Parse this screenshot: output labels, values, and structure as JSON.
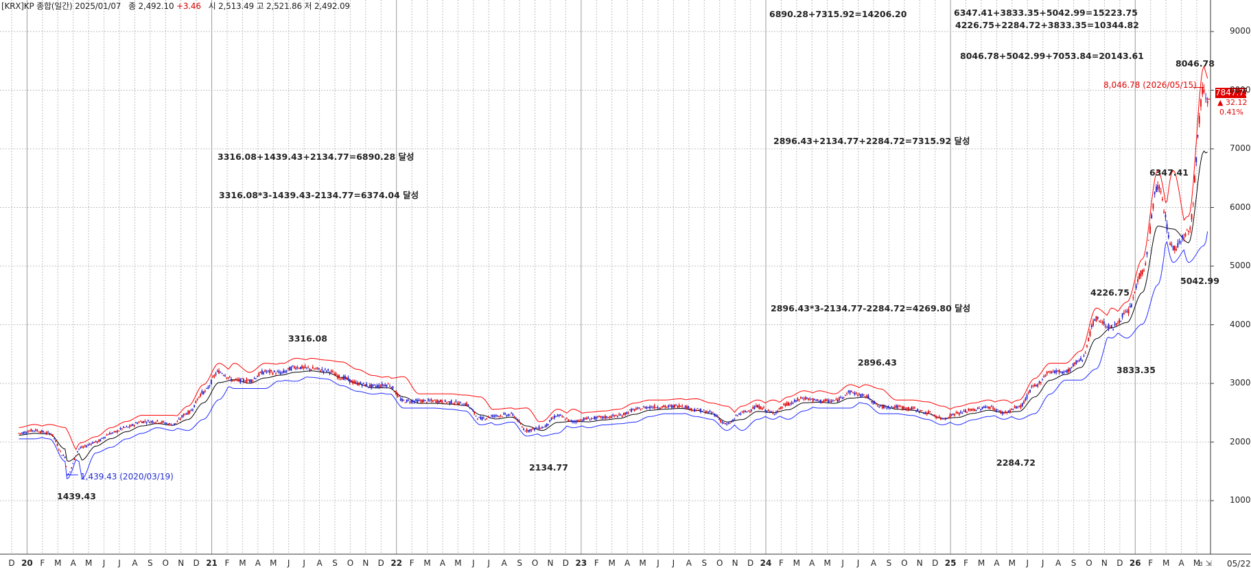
{
  "header": {
    "symbol": "[KRX]KP 종합(일간)",
    "date": "2025/01/07",
    "close_label": "종",
    "close": "2,492.10",
    "change": "+3.46",
    "open_label": "시",
    "open": "2,513.49",
    "high_label": "고",
    "high": "2,521.86",
    "low_label": "저",
    "low": "2,492.09"
  },
  "annotations": {
    "sum1": "6890.28+7315.92=14206.20",
    "sum2": "6347.41+3833.35+5042.99=15223.75",
    "sum3": "4226.75+2284.72+3833.35=10344.82",
    "sum4": "8046.78+5042.99+7053.84=20143.61",
    "peak_2026": "8046.78",
    "calc_a": "3316.08+1439.43+2134.77=6890.28 달성",
    "calc_b": "3316.08*3-1439.43-2134.77=6374.04 달성",
    "calc_c": "2896.43+2134.77+2284.72=7315.92 달성",
    "calc_d": "2896.43*3-2134.77-2284.72=4269.80 달성",
    "lvl_6347": "6347.41",
    "lvl_4226": "4226.75",
    "lvl_5042": "5042.99",
    "lvl_3316": "3316.08",
    "lvl_2896": "2896.43",
    "lvl_3833": "3833.35",
    "lvl_2134": "2134.77",
    "lvl_2284": "2284.72",
    "lvl_1439": "1439.43",
    "low_marker": "1,439.43 (2020/03/19)",
    "high_marker": "8,046.78 (2026/05/15)"
  },
  "last_price": {
    "value": "7847.71",
    "change": "▲ 32.12",
    "change_pct": "0.41%"
  },
  "x_axis_end": "05/22",
  "colors": {
    "up": "#e00000",
    "down": "#1a1ad0",
    "upper_band": "#ff0000",
    "lower_band": "#1f2bff",
    "middle": "#000000",
    "grid": "#bfbfbf"
  },
  "chart_data": {
    "type": "line",
    "title": "[KRX]KP 종합(일간)",
    "y_ticks": [
      "1000.00",
      "2000.00",
      "3000.00",
      "4000.00",
      "5000.00",
      "6000.00",
      "7000.00",
      "8000.00",
      "9000.00"
    ],
    "ylim": [
      0,
      9500
    ],
    "x_ticks": [
      {
        "label": "D",
        "year": false
      },
      {
        "label": "20",
        "year": true
      },
      {
        "label": "F",
        "year": false
      },
      {
        "label": "M",
        "year": false
      },
      {
        "label": "A",
        "year": false
      },
      {
        "label": "M",
        "year": false
      },
      {
        "label": "J",
        "year": false
      },
      {
        "label": "J",
        "year": false
      },
      {
        "label": "A",
        "year": false
      },
      {
        "label": "S",
        "year": false
      },
      {
        "label": "O",
        "year": false
      },
      {
        "label": "N",
        "year": false
      },
      {
        "label": "D",
        "year": false
      },
      {
        "label": "21",
        "year": true
      },
      {
        "label": "F",
        "year": false
      },
      {
        "label": "M",
        "year": false
      },
      {
        "label": "A",
        "year": false
      },
      {
        "label": "M",
        "year": false
      },
      {
        "label": "J",
        "year": false
      },
      {
        "label": "J",
        "year": false
      },
      {
        "label": "A",
        "year": false
      },
      {
        "label": "S",
        "year": false
      },
      {
        "label": "O",
        "year": false
      },
      {
        "label": "N",
        "year": false
      },
      {
        "label": "D",
        "year": false
      },
      {
        "label": "22",
        "year": true
      },
      {
        "label": "F",
        "year": false
      },
      {
        "label": "M",
        "year": false
      },
      {
        "label": "A",
        "year": false
      },
      {
        "label": "M",
        "year": false
      },
      {
        "label": "J",
        "year": false
      },
      {
        "label": "J",
        "year": false
      },
      {
        "label": "A",
        "year": false
      },
      {
        "label": "S",
        "year": false
      },
      {
        "label": "O",
        "year": false
      },
      {
        "label": "N",
        "year": false
      },
      {
        "label": "D",
        "year": false
      },
      {
        "label": "23",
        "year": true
      },
      {
        "label": "F",
        "year": false
      },
      {
        "label": "M",
        "year": false
      },
      {
        "label": "A",
        "year": false
      },
      {
        "label": "M",
        "year": false
      },
      {
        "label": "J",
        "year": false
      },
      {
        "label": "J",
        "year": false
      },
      {
        "label": "A",
        "year": false
      },
      {
        "label": "S",
        "year": false
      },
      {
        "label": "O",
        "year": false
      },
      {
        "label": "N",
        "year": false
      },
      {
        "label": "D",
        "year": false
      },
      {
        "label": "24",
        "year": true
      },
      {
        "label": "F",
        "year": false
      },
      {
        "label": "M",
        "year": false
      },
      {
        "label": "A",
        "year": false
      },
      {
        "label": "M",
        "year": false
      },
      {
        "label": "J",
        "year": false
      },
      {
        "label": "J",
        "year": false
      },
      {
        "label": "A",
        "year": false
      },
      {
        "label": "S",
        "year": false
      },
      {
        "label": "O",
        "year": false
      },
      {
        "label": "N",
        "year": false
      },
      {
        "label": "D",
        "year": false
      },
      {
        "label": "25",
        "year": true
      },
      {
        "label": "F",
        "year": false
      },
      {
        "label": "M",
        "year": false
      },
      {
        "label": "A",
        "year": false
      },
      {
        "label": "M",
        "year": false
      },
      {
        "label": "J",
        "year": false
      },
      {
        "label": "J",
        "year": false
      },
      {
        "label": "A",
        "year": false
      },
      {
        "label": "S",
        "year": false
      },
      {
        "label": "O",
        "year": false
      },
      {
        "label": "N",
        "year": false
      },
      {
        "label": "D",
        "year": false
      },
      {
        "label": "26",
        "year": true
      },
      {
        "label": "F",
        "year": false
      },
      {
        "label": "M",
        "year": false
      },
      {
        "label": "A",
        "year": false
      },
      {
        "label": "M",
        "year": false
      }
    ],
    "grid": true,
    "series": [
      {
        "name": "",
        "x": [
          "2019-12",
          "2020-01",
          "2020-02",
          "2020-03",
          "2020-03-19",
          "2020-04",
          "2020-05",
          "2020-06",
          "2020-07",
          "2020-08",
          "2020-09",
          "2020-10",
          "2020-11",
          "2020-12",
          "2021-01",
          "2021-02",
          "2021-03",
          "2021-04",
          "2021-05",
          "2021-06",
          "2021-07",
          "2021-08",
          "2021-09",
          "2021-10",
          "2021-11",
          "2021-12",
          "2022-01",
          "2022-02",
          "2022-03",
          "2022-04",
          "2022-05",
          "2022-06",
          "2022-07",
          "2022-08",
          "2022-09",
          "2022-10",
          "2022-11",
          "2022-12",
          "2023-01",
          "2023-02",
          "2023-03",
          "2023-04",
          "2023-05",
          "2023-06",
          "2023-07",
          "2023-08",
          "2023-09",
          "2023-10",
          "2023-11",
          "2023-12",
          "2024-01",
          "2024-02",
          "2024-03",
          "2024-04",
          "2024-05",
          "2024-06",
          "2024-07",
          "2024-08",
          "2024-09",
          "2024-10",
          "2024-11",
          "2024-12",
          "2025-01",
          "2025-02",
          "2025-03",
          "2025-04",
          "2025-05",
          "2025-06",
          "2025-07",
          "2025-08",
          "2025-09",
          "2025-10",
          "2025-11",
          "2025-12",
          "2026-01",
          "2026-02",
          "2026-03",
          "2026-04",
          "2026-05-15",
          "2026-05-22"
        ],
        "values": [
          2150,
          2200,
          2150,
          1750,
          1439.43,
          1900,
          2000,
          2150,
          2250,
          2350,
          2350,
          2300,
          2500,
          2850,
          3200,
          3050,
          3050,
          3200,
          3180,
          3280,
          3250,
          3220,
          3100,
          3000,
          2950,
          2980,
          2700,
          2700,
          2700,
          2680,
          2650,
          2400,
          2450,
          2470,
          2200,
          2250,
          2450,
          2350,
          2400,
          2420,
          2450,
          2550,
          2600,
          2600,
          2620,
          2550,
          2500,
          2300,
          2500,
          2600,
          2500,
          2650,
          2750,
          2700,
          2700,
          2850,
          2780,
          2600,
          2600,
          2570,
          2500,
          2400,
          2492.1,
          2550,
          2600,
          2500,
          2600,
          2950,
          3200,
          3200,
          3400,
          4100,
          3950,
          4200,
          4900,
          6347.41,
          5300,
          5600,
          8046.78,
          7847.71
        ]
      }
    ]
  }
}
